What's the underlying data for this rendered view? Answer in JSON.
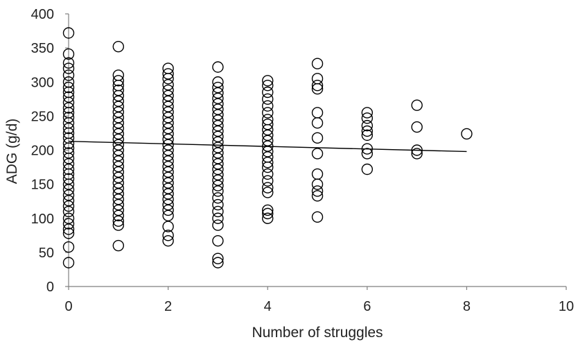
{
  "chart_data": {
    "type": "scatter",
    "title": "",
    "xlabel": "Number of struggles",
    "ylabel": "ADG (g/d)",
    "xlim": [
      0,
      10
    ],
    "ylim": [
      0,
      400
    ],
    "x_ticks": [
      0,
      2,
      4,
      6,
      8,
      10
    ],
    "y_ticks": [
      0,
      50,
      100,
      150,
      200,
      250,
      300,
      350,
      400
    ],
    "grid": false,
    "legend": "none",
    "marker": "open-circle",
    "colors": {
      "marker": "#000000",
      "axis": "#7f7f7f",
      "text": "#222222"
    },
    "series": [
      {
        "points": [
          [
            0,
            372
          ],
          [
            0,
            341
          ],
          [
            0,
            328
          ],
          [
            0,
            320
          ],
          [
            0,
            310
          ],
          [
            0,
            300
          ],
          [
            0,
            292
          ],
          [
            0,
            285
          ],
          [
            0,
            278
          ],
          [
            0,
            270
          ],
          [
            0,
            262
          ],
          [
            0,
            255
          ],
          [
            0,
            248
          ],
          [
            0,
            240
          ],
          [
            0,
            232
          ],
          [
            0,
            225
          ],
          [
            0,
            218
          ],
          [
            0,
            210
          ],
          [
            0,
            203
          ],
          [
            0,
            196
          ],
          [
            0,
            188
          ],
          [
            0,
            180
          ],
          [
            0,
            172
          ],
          [
            0,
            165
          ],
          [
            0,
            158
          ],
          [
            0,
            150
          ],
          [
            0,
            142
          ],
          [
            0,
            134
          ],
          [
            0,
            126
          ],
          [
            0,
            118
          ],
          [
            0,
            110
          ],
          [
            0,
            100
          ],
          [
            0,
            92
          ],
          [
            0,
            84
          ],
          [
            0,
            78
          ],
          [
            0,
            58
          ],
          [
            0,
            35
          ],
          [
            1,
            352
          ],
          [
            1,
            310
          ],
          [
            1,
            302
          ],
          [
            1,
            295
          ],
          [
            1,
            288
          ],
          [
            1,
            280
          ],
          [
            1,
            272
          ],
          [
            1,
            264
          ],
          [
            1,
            256
          ],
          [
            1,
            248
          ],
          [
            1,
            240
          ],
          [
            1,
            232
          ],
          [
            1,
            224
          ],
          [
            1,
            216
          ],
          [
            1,
            208
          ],
          [
            1,
            200
          ],
          [
            1,
            192
          ],
          [
            1,
            184
          ],
          [
            1,
            176
          ],
          [
            1,
            168
          ],
          [
            1,
            160
          ],
          [
            1,
            152
          ],
          [
            1,
            144
          ],
          [
            1,
            136
          ],
          [
            1,
            128
          ],
          [
            1,
            120
          ],
          [
            1,
            112
          ],
          [
            1,
            104
          ],
          [
            1,
            96
          ],
          [
            1,
            90
          ],
          [
            1,
            60
          ],
          [
            2,
            320
          ],
          [
            2,
            312
          ],
          [
            2,
            305
          ],
          [
            2,
            296
          ],
          [
            2,
            288
          ],
          [
            2,
            280
          ],
          [
            2,
            272
          ],
          [
            2,
            264
          ],
          [
            2,
            256
          ],
          [
            2,
            248
          ],
          [
            2,
            240
          ],
          [
            2,
            232
          ],
          [
            2,
            224
          ],
          [
            2,
            216
          ],
          [
            2,
            208
          ],
          [
            2,
            200
          ],
          [
            2,
            192
          ],
          [
            2,
            184
          ],
          [
            2,
            176
          ],
          [
            2,
            168
          ],
          [
            2,
            160
          ],
          [
            2,
            152
          ],
          [
            2,
            144
          ],
          [
            2,
            136
          ],
          [
            2,
            128
          ],
          [
            2,
            120
          ],
          [
            2,
            112
          ],
          [
            2,
            104
          ],
          [
            2,
            88
          ],
          [
            2,
            75
          ],
          [
            2,
            67
          ],
          [
            3,
            322
          ],
          [
            3,
            300
          ],
          [
            3,
            292
          ],
          [
            3,
            284
          ],
          [
            3,
            276
          ],
          [
            3,
            268
          ],
          [
            3,
            260
          ],
          [
            3,
            252
          ],
          [
            3,
            244
          ],
          [
            3,
            236
          ],
          [
            3,
            228
          ],
          [
            3,
            220
          ],
          [
            3,
            212
          ],
          [
            3,
            204
          ],
          [
            3,
            196
          ],
          [
            3,
            188
          ],
          [
            3,
            180
          ],
          [
            3,
            172
          ],
          [
            3,
            164
          ],
          [
            3,
            156
          ],
          [
            3,
            148
          ],
          [
            3,
            140
          ],
          [
            3,
            130
          ],
          [
            3,
            120
          ],
          [
            3,
            110
          ],
          [
            3,
            100
          ],
          [
            3,
            90
          ],
          [
            3,
            67
          ],
          [
            3,
            41
          ],
          [
            3,
            35
          ],
          [
            4,
            302
          ],
          [
            4,
            295
          ],
          [
            4,
            285
          ],
          [
            4,
            275
          ],
          [
            4,
            265
          ],
          [
            4,
            255
          ],
          [
            4,
            245
          ],
          [
            4,
            238
          ],
          [
            4,
            230
          ],
          [
            4,
            222
          ],
          [
            4,
            214
          ],
          [
            4,
            206
          ],
          [
            4,
            198
          ],
          [
            4,
            190
          ],
          [
            4,
            182
          ],
          [
            4,
            175
          ],
          [
            4,
            165
          ],
          [
            4,
            155
          ],
          [
            4,
            145
          ],
          [
            4,
            138
          ],
          [
            4,
            112
          ],
          [
            4,
            107
          ],
          [
            4,
            100
          ],
          [
            5,
            327
          ],
          [
            5,
            305
          ],
          [
            5,
            295
          ],
          [
            5,
            290
          ],
          [
            5,
            255
          ],
          [
            5,
            240
          ],
          [
            5,
            218
          ],
          [
            5,
            195
          ],
          [
            5,
            165
          ],
          [
            5,
            150
          ],
          [
            5,
            140
          ],
          [
            5,
            133
          ],
          [
            5,
            102
          ],
          [
            6,
            255
          ],
          [
            6,
            247
          ],
          [
            6,
            236
          ],
          [
            6,
            228
          ],
          [
            6,
            222
          ],
          [
            6,
            202
          ],
          [
            6,
            195
          ],
          [
            6,
            172
          ],
          [
            7,
            266
          ],
          [
            7,
            234
          ],
          [
            7,
            200
          ],
          [
            7,
            195
          ],
          [
            8,
            224
          ]
        ]
      }
    ],
    "trendline": {
      "type": "linear",
      "from": [
        0,
        213
      ],
      "to": [
        8,
        198
      ]
    }
  }
}
